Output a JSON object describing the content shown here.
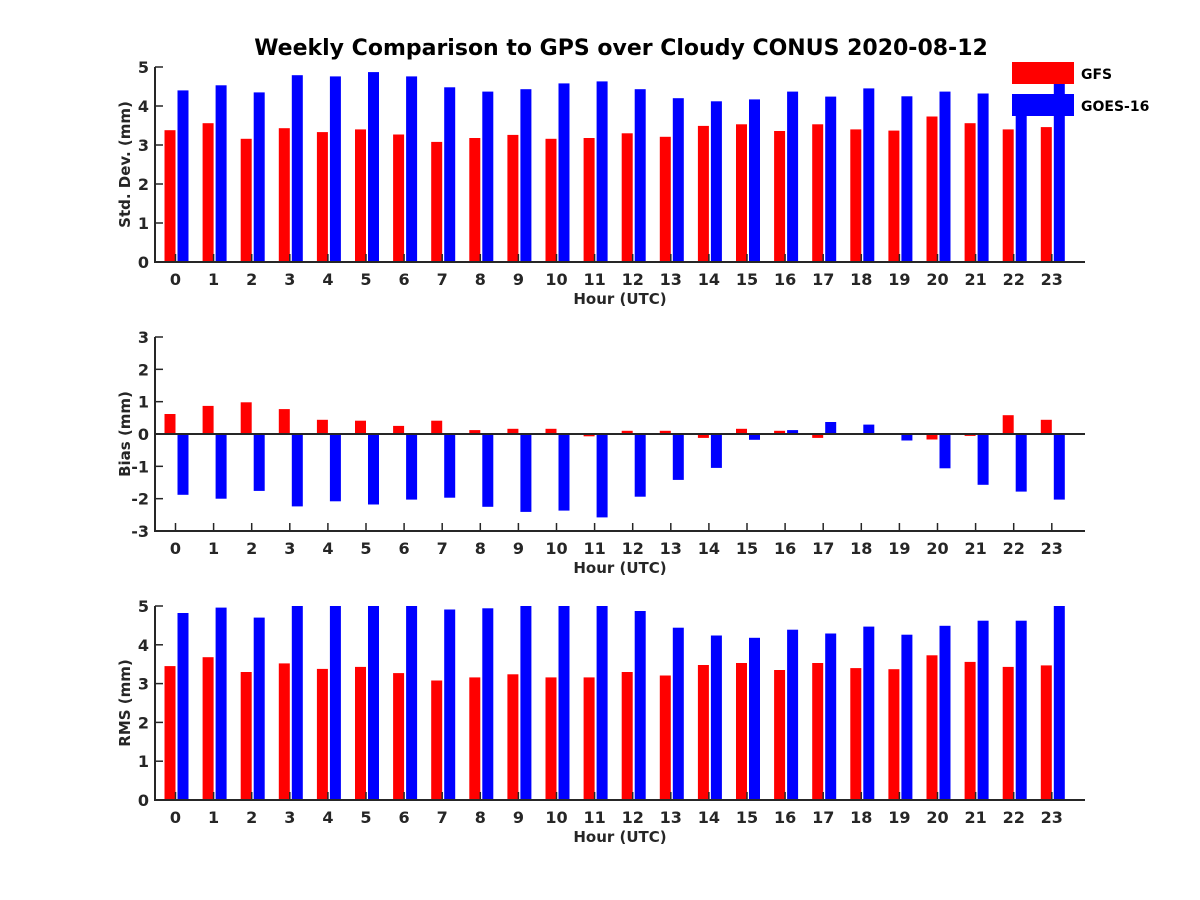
{
  "title": "Weekly Comparison to GPS over Cloudy CONUS 2020-08-12",
  "colors": {
    "GFS": "#ff0000",
    "GOES-16": "#0000ff",
    "axis": "#262626"
  },
  "chart_data": [
    {
      "type": "bar",
      "xlabel": "Hour (UTC)",
      "ylabel": "Std. Dev. (mm)",
      "ylim": [
        0,
        5
      ],
      "yticks": [
        0,
        1,
        2,
        3,
        4,
        5
      ],
      "categories": [
        "0",
        "1",
        "2",
        "3",
        "4",
        "5",
        "6",
        "7",
        "8",
        "9",
        "10",
        "11",
        "12",
        "13",
        "14",
        "15",
        "16",
        "17",
        "18",
        "19",
        "20",
        "21",
        "22",
        "23"
      ],
      "legend": {
        "placement": "top-right",
        "entries": [
          "GFS",
          "GOES-16"
        ]
      },
      "series": [
        {
          "name": "GFS",
          "color": "#ff0000",
          "values": [
            3.38,
            3.56,
            3.16,
            3.43,
            3.33,
            3.4,
            3.27,
            3.08,
            3.18,
            3.26,
            3.16,
            3.18,
            3.3,
            3.21,
            3.49,
            3.53,
            3.36,
            3.53,
            3.4,
            3.37,
            3.73,
            3.56,
            3.4,
            3.46
          ]
        },
        {
          "name": "GOES-16",
          "color": "#0000ff",
          "values": [
            4.4,
            4.53,
            4.35,
            4.79,
            4.76,
            4.87,
            4.76,
            4.48,
            4.37,
            4.43,
            4.58,
            4.63,
            4.43,
            4.2,
            4.12,
            4.17,
            4.37,
            4.24,
            4.45,
            4.25,
            4.37,
            4.32,
            4.25,
            4.7
          ]
        }
      ]
    },
    {
      "type": "bar",
      "xlabel": "Hour (UTC)",
      "ylabel": "Bias (mm)",
      "ylim": [
        -3,
        3
      ],
      "yticks": [
        -3,
        -2,
        -1,
        0,
        1,
        2,
        3
      ],
      "categories": [
        "0",
        "1",
        "2",
        "3",
        "4",
        "5",
        "6",
        "7",
        "8",
        "9",
        "10",
        "11",
        "12",
        "13",
        "14",
        "15",
        "16",
        "17",
        "18",
        "19",
        "20",
        "21",
        "22",
        "23"
      ],
      "series": [
        {
          "name": "GFS",
          "color": "#ff0000",
          "values": [
            0.62,
            0.87,
            0.98,
            0.77,
            0.44,
            0.41,
            0.25,
            0.41,
            0.12,
            0.16,
            0.16,
            -0.07,
            0.1,
            0.1,
            -0.12,
            0.16,
            0.1,
            -0.12,
            0.0,
            0.0,
            -0.17,
            -0.06,
            0.58,
            0.44
          ]
        },
        {
          "name": "GOES-16",
          "color": "#0000ff",
          "values": [
            -1.88,
            -2.0,
            -1.76,
            -2.24,
            -2.08,
            -2.18,
            -2.03,
            -1.97,
            -2.25,
            -2.41,
            -2.37,
            -2.58,
            -1.94,
            -1.42,
            -1.05,
            -0.18,
            0.12,
            0.37,
            0.29,
            -0.2,
            -1.06,
            -1.57,
            -1.78,
            -2.03
          ]
        }
      ]
    },
    {
      "type": "bar",
      "xlabel": "Hour (UTC)",
      "ylabel": "RMS (mm)",
      "ylim": [
        0,
        5
      ],
      "yticks": [
        0,
        1,
        2,
        3,
        4,
        5
      ],
      "categories": [
        "0",
        "1",
        "2",
        "3",
        "4",
        "5",
        "6",
        "7",
        "8",
        "9",
        "10",
        "11",
        "12",
        "13",
        "14",
        "15",
        "16",
        "17",
        "18",
        "19",
        "20",
        "21",
        "22",
        "23"
      ],
      "series": [
        {
          "name": "GFS",
          "color": "#ff0000",
          "values": [
            3.45,
            3.68,
            3.3,
            3.52,
            3.38,
            3.43,
            3.27,
            3.08,
            3.16,
            3.24,
            3.16,
            3.16,
            3.3,
            3.21,
            3.48,
            3.53,
            3.35,
            3.53,
            3.4,
            3.37,
            3.73,
            3.56,
            3.43,
            3.47
          ]
        },
        {
          "name": "GOES-16",
          "color": "#0000ff",
          "values": [
            4.82,
            4.96,
            4.7,
            5.0,
            5.0,
            5.0,
            5.0,
            4.91,
            4.94,
            5.0,
            5.0,
            5.0,
            4.87,
            4.44,
            4.24,
            4.18,
            4.39,
            4.29,
            4.47,
            4.26,
            4.49,
            4.62,
            4.62,
            5.0
          ]
        }
      ]
    }
  ]
}
